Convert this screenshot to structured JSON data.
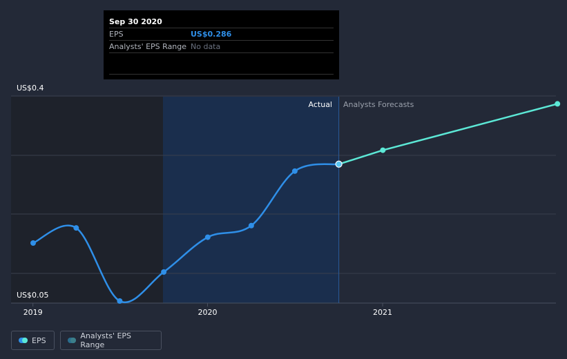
{
  "tooltip": {
    "date": "Sep 30 2020",
    "rows": [
      {
        "label": "EPS",
        "value": "US$0.286"
      },
      {
        "label": "Analysts' EPS Range",
        "value": "No data"
      }
    ]
  },
  "legend": {
    "eps": "EPS",
    "range": "Analysts' EPS Range"
  },
  "colors": {
    "background": "#232937",
    "actual_line": "#2f8fe8",
    "forecast_line": "#5ce8d6",
    "highlight_region": "#1a2e4d",
    "past_region": "#1e222b",
    "grid": "#3a404d"
  },
  "chart_data": {
    "type": "line",
    "title": "",
    "xlabel": "",
    "ylabel": "",
    "y_labels": [
      "US$0.4",
      "US$0.05"
    ],
    "x_ticks": [
      "2019",
      "2020",
      "2021"
    ],
    "region_labels": {
      "actual": "Actual",
      "forecast": "Analysts Forecasts"
    },
    "ylim": [
      0.05,
      0.4
    ],
    "grid": true,
    "series": [
      {
        "name": "EPS",
        "kind": "actual",
        "x": [
          "2018-12-31",
          "2019-03-31",
          "2019-06-30",
          "2019-09-30",
          "2019-12-31",
          "2020-03-31",
          "2020-06-30",
          "2020-09-30"
        ],
        "values": [
          0.15,
          0.176,
          0.05,
          0.1,
          0.16,
          0.18,
          0.274,
          0.286
        ]
      },
      {
        "name": "EPS",
        "kind": "forecast",
        "x": [
          "2020-09-30",
          "2020-12-31",
          "2021-12-31"
        ],
        "values": [
          0.286,
          0.31,
          0.39
        ]
      }
    ]
  }
}
